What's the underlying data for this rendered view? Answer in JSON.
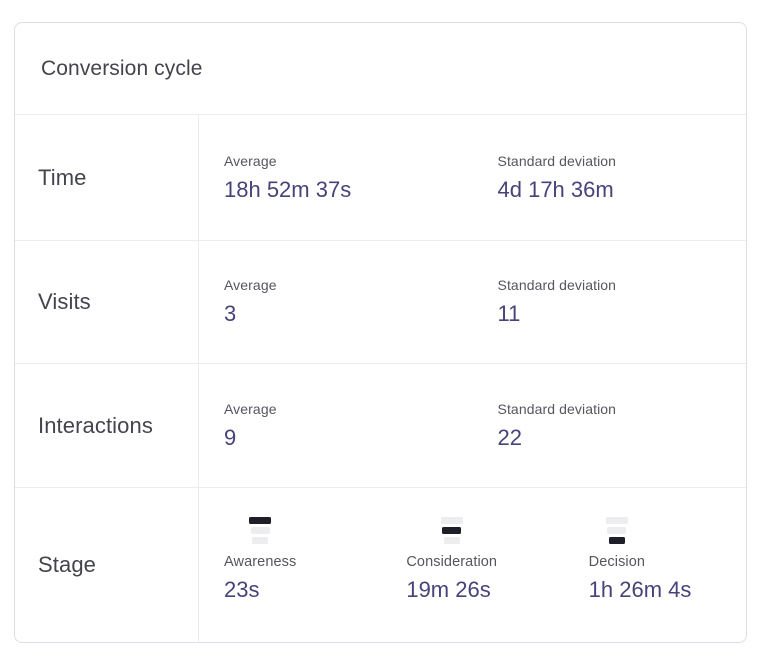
{
  "title": "Conversion cycle",
  "rows": [
    {
      "label": "Time",
      "metrics": [
        {
          "label": "Average",
          "value": "18h 52m 37s"
        },
        {
          "label": "Standard deviation",
          "value": "4d 17h 36m"
        }
      ]
    },
    {
      "label": "Visits",
      "metrics": [
        {
          "label": "Average",
          "value": "3"
        },
        {
          "label": "Standard deviation",
          "value": "11"
        }
      ]
    },
    {
      "label": "Interactions",
      "metrics": [
        {
          "label": "Average",
          "value": "9"
        },
        {
          "label": "Standard deviation",
          "value": "22"
        }
      ]
    },
    {
      "label": "Stage",
      "stages": [
        {
          "label": "Awareness",
          "value": "23s",
          "active_bar": 0,
          "icon": "funnel-top-active-icon"
        },
        {
          "label": "Consideration",
          "value": "19m 26s",
          "active_bar": 1,
          "icon": "funnel-middle-active-icon"
        },
        {
          "label": "Decision",
          "value": "1h 26m 4s",
          "active_bar": 2,
          "icon": "funnel-bottom-active-icon"
        }
      ]
    }
  ],
  "colors": {
    "heading": "#43444d",
    "label_gray": "#55565f",
    "value_accent": "#474379",
    "funnel_active": "#1e1e28",
    "funnel_inactive": "#ededf0",
    "border_outer": "#dcdde6",
    "border_inner": "#ececf0"
  }
}
